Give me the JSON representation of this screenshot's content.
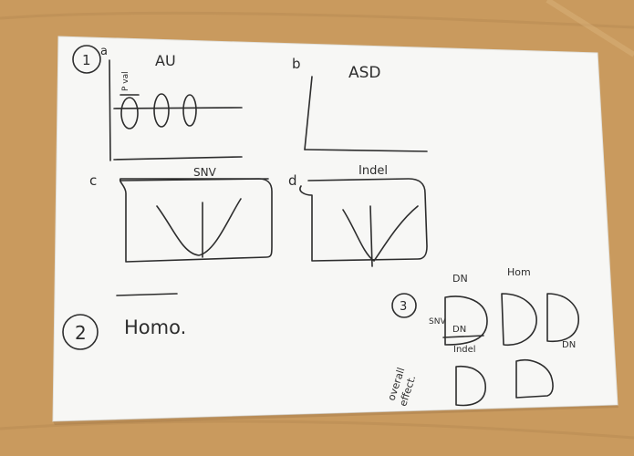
{
  "photo": {
    "surface_color": "#c99a5e",
    "paper_color": "#f7f7f5",
    "ink_color": "#2d2d2d"
  },
  "sketch": {
    "section_1": {
      "number": "1",
      "panel_a": {
        "letter": "a",
        "title": "AU",
        "y_label": "P val"
      },
      "panel_b": {
        "letter": "b",
        "title": "ASD"
      },
      "panel_c": {
        "letter": "c",
        "title": "SNV"
      },
      "panel_d": {
        "letter": "d",
        "title": "Indel"
      }
    },
    "section_2": {
      "number": "2",
      "text": "Homo."
    },
    "section_3": {
      "number": "3",
      "col_dn": "DN",
      "col_hom": "Hom",
      "row_snv": "SNV",
      "box_label_dn": "DN",
      "label_indel": "Indel",
      "label_dn_right": "DN",
      "overall_label_line1": "overall",
      "overall_label_line2": "effect."
    }
  }
}
